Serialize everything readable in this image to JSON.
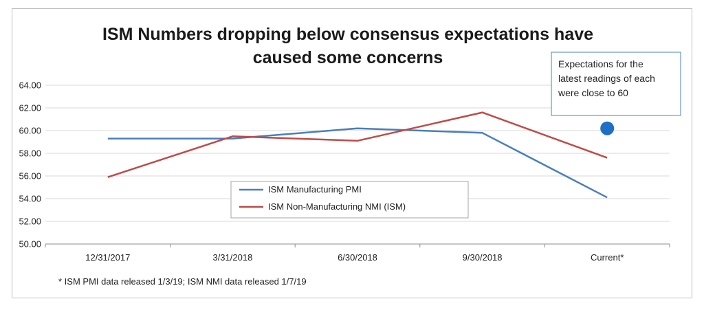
{
  "chart_data": {
    "type": "line",
    "title_lines": [
      "ISM Numbers dropping below consensus expectations have",
      "caused some concerns"
    ],
    "categories": [
      "12/31/2017",
      "3/31/2018",
      "6/30/2018",
      "9/30/2018",
      "Current*"
    ],
    "y_ticks": [
      "64.00",
      "62.00",
      "60.00",
      "58.00",
      "56.00",
      "54.00",
      "52.00",
      "50.00"
    ],
    "ylim": [
      50,
      64
    ],
    "grid": true,
    "series": [
      {
        "name": "ISM Manufacturing PMI",
        "color": "#4a7ebb",
        "values": [
          59.3,
          59.3,
          60.2,
          59.8,
          54.1
        ]
      },
      {
        "name": "ISM Non-Manufacturing NMI (ISM)",
        "color": "#be4b48",
        "values": [
          55.9,
          59.5,
          59.1,
          61.6,
          57.6
        ]
      }
    ],
    "expectation_marker": {
      "category": "Current*",
      "value": 60.2,
      "color": "#1f6fc6"
    },
    "annotation": {
      "lines": [
        "Expectations for the",
        "latest readings of each",
        "were close to 60"
      ]
    },
    "legend_position": "center-bottom",
    "footnote": "* ISM PMI data released 1/3/19; ISM NMI data released 1/7/19"
  }
}
